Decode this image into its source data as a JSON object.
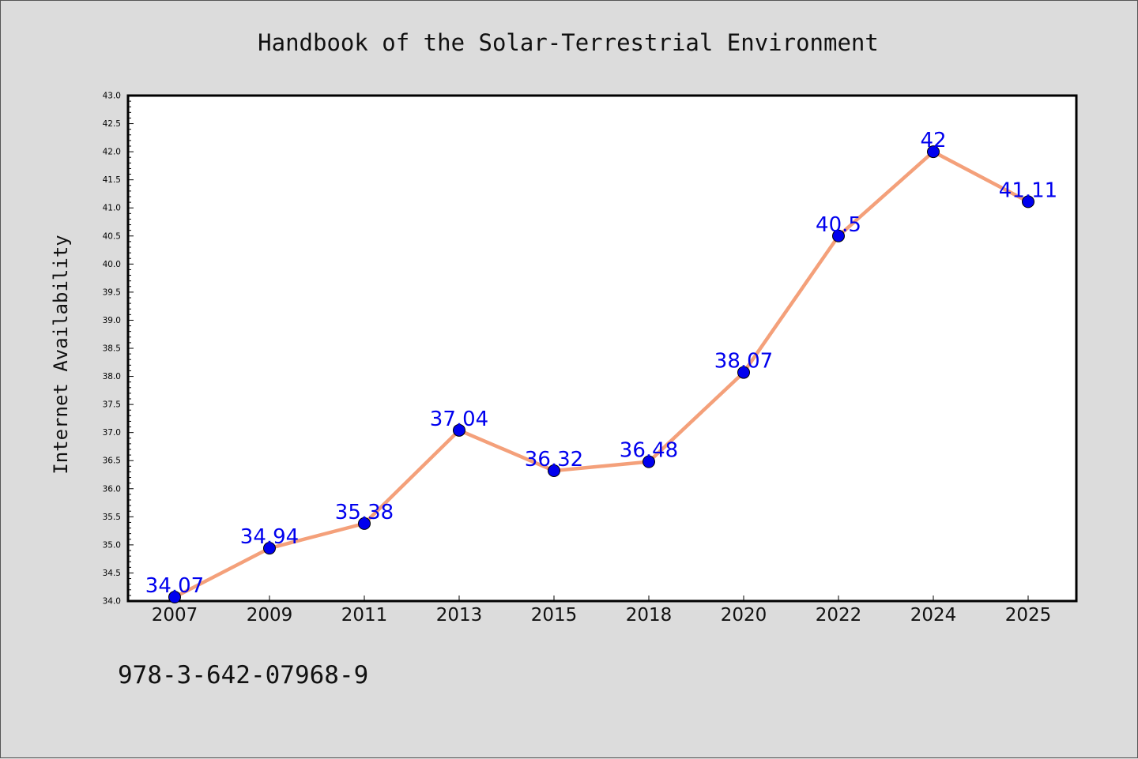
{
  "chart_data": {
    "type": "line",
    "title": "Handbook of the Solar-Terrestrial Environment",
    "xlabel": "",
    "ylabel": "Internet Availability",
    "categories": [
      "2007",
      "2009",
      "2011",
      "2013",
      "2015",
      "2018",
      "2020",
      "2022",
      "2024",
      "2025"
    ],
    "series": [
      {
        "values": [
          34.07,
          34.94,
          35.38,
          37.04,
          36.32,
          36.48,
          38.07,
          40.5,
          42,
          41.11
        ],
        "data_labels": [
          "34.07",
          "34.94",
          "35.38",
          "37.04",
          "36.32",
          "36.48",
          "38.07",
          "40.5",
          "42",
          "41.11"
        ],
        "line_color": "#f4a07a",
        "marker_color": "#0000ee",
        "label_color": "#0000ee"
      }
    ],
    "ylim": [
      34.0,
      43.0
    ],
    "yticks": [
      "34.0",
      "34.5",
      "35.0",
      "35.5",
      "36.0",
      "36.5",
      "37.0",
      "37.5",
      "38.0",
      "38.5",
      "39.0",
      "39.5",
      "40.0",
      "40.5",
      "41.0",
      "41.5",
      "42.0",
      "42.5",
      "43.0"
    ],
    "grid": false,
    "legend": "none"
  },
  "footer": {
    "isbn": "978-3-642-07968-9"
  },
  "colors": {
    "background": "#dcdcdc",
    "plot_area": "#ffffff",
    "axis": "#000000"
  }
}
